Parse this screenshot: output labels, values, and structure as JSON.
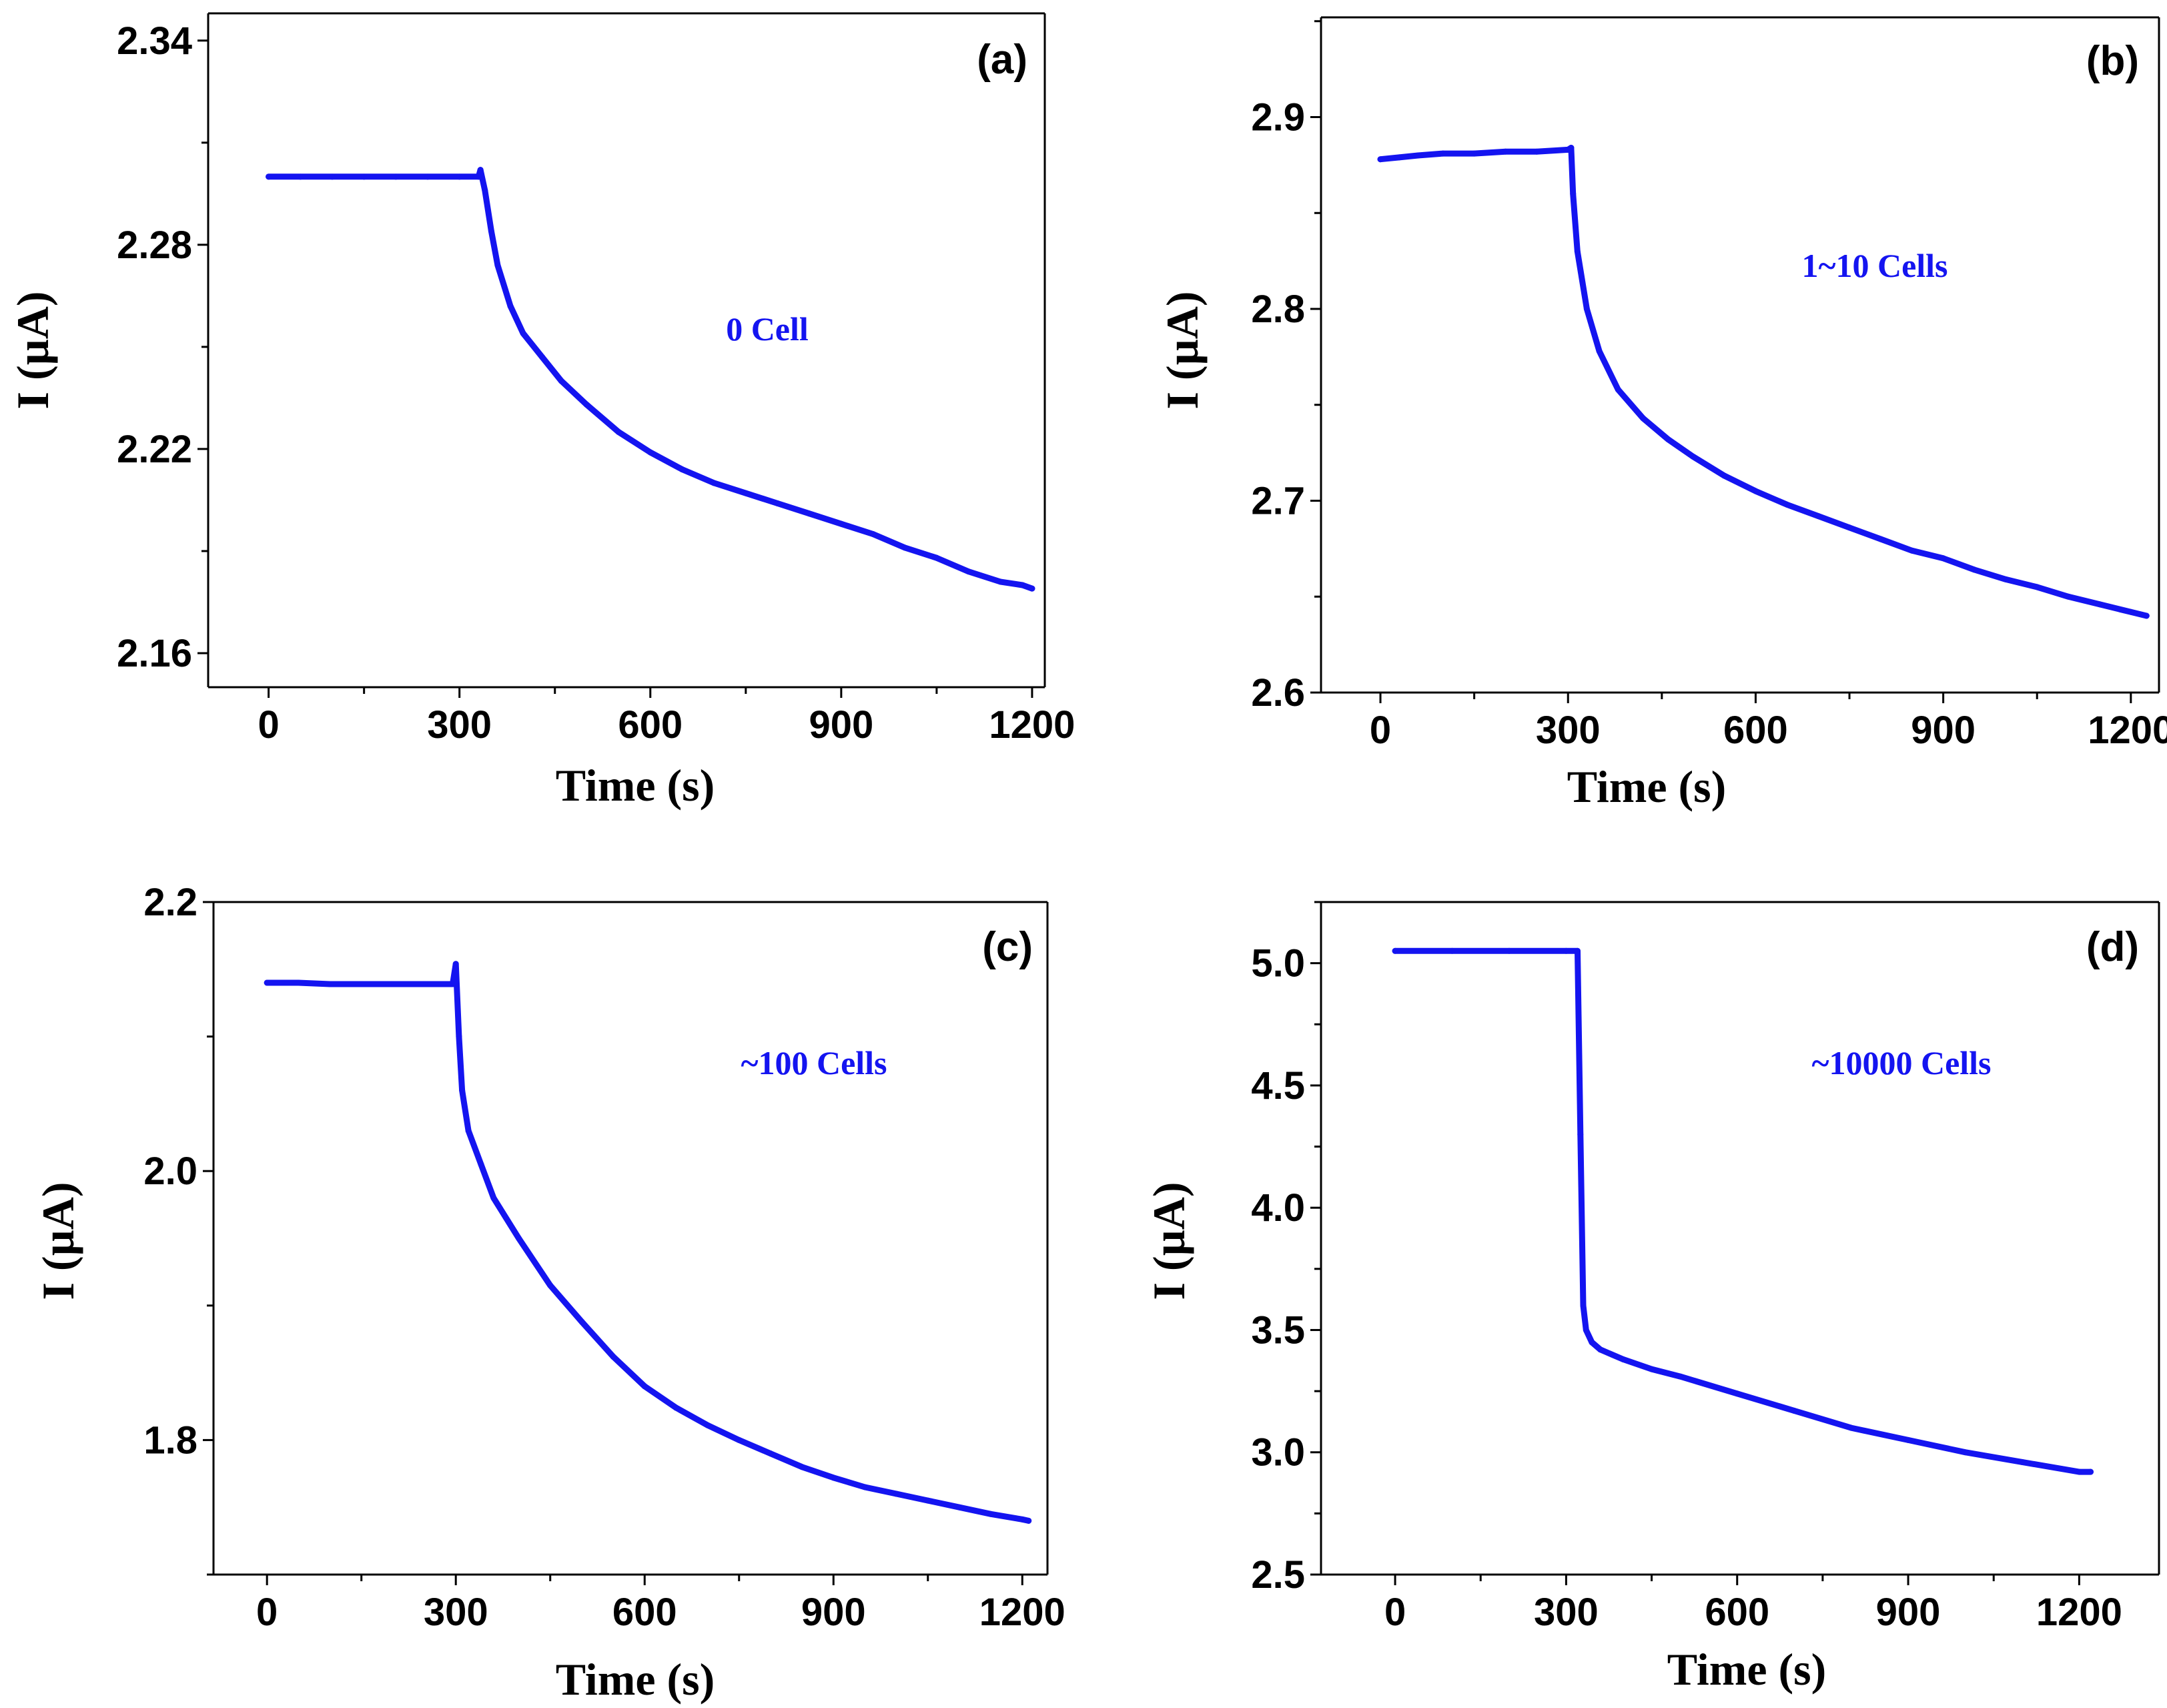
{
  "colors": {
    "series": "#1414f0",
    "axis": "#000000"
  },
  "chart_data": [
    {
      "type": "line",
      "panel_label": "(a)",
      "annotation": "0 Cell",
      "xlabel": "Time (s)",
      "ylabel": "I (µA)",
      "xlim": [
        -95,
        1220
      ],
      "ylim": [
        2.15,
        2.348
      ],
      "xticks": [
        0,
        300,
        600,
        900,
        1200
      ],
      "yticks": [
        2.16,
        2.22,
        2.28,
        2.34
      ],
      "ytick_labels": [
        "2.16",
        "2.22",
        "2.28",
        "2.34"
      ],
      "series": [
        {
          "name": "0 Cell",
          "x": [
            0,
            50,
            100,
            150,
            200,
            250,
            300,
            330,
            333,
            340,
            350,
            360,
            380,
            400,
            430,
            460,
            500,
            550,
            600,
            650,
            700,
            750,
            800,
            850,
            900,
            950,
            1000,
            1050,
            1100,
            1150,
            1185,
            1200
          ],
          "y": [
            2.3,
            2.3,
            2.3,
            2.3,
            2.3,
            2.3,
            2.3,
            2.3,
            2.302,
            2.296,
            2.284,
            2.274,
            2.262,
            2.254,
            2.247,
            2.24,
            2.233,
            2.225,
            2.219,
            2.214,
            2.21,
            2.207,
            2.204,
            2.201,
            2.198,
            2.195,
            2.191,
            2.188,
            2.184,
            2.181,
            2.18,
            2.179
          ]
        }
      ]
    },
    {
      "type": "line",
      "panel_label": "(b)",
      "annotation": "1~10 Cells",
      "xlabel": "Time (s)",
      "ylabel": "I (µA)",
      "xlim": [
        -95,
        1245
      ],
      "ylim": [
        2.6,
        2.952
      ],
      "xticks": [
        0,
        300,
        600,
        900,
        1200
      ],
      "yticks": [
        2.6,
        2.7,
        2.8,
        2.9
      ],
      "ytick_labels": [
        "2.6",
        "2.7",
        "2.8",
        "2.9"
      ],
      "series": [
        {
          "name": "1~10 Cells",
          "x": [
            0,
            30,
            60,
            100,
            150,
            200,
            250,
            300,
            305,
            308,
            315,
            330,
            350,
            380,
            420,
            460,
            500,
            550,
            600,
            650,
            700,
            750,
            800,
            850,
            900,
            950,
            1000,
            1050,
            1100,
            1150,
            1200,
            1225
          ],
          "y": [
            2.878,
            2.879,
            2.88,
            2.881,
            2.881,
            2.882,
            2.882,
            2.883,
            2.884,
            2.86,
            2.83,
            2.8,
            2.778,
            2.758,
            2.743,
            2.732,
            2.723,
            2.713,
            2.705,
            2.698,
            2.692,
            2.686,
            2.68,
            2.674,
            2.67,
            2.664,
            2.659,
            2.655,
            2.65,
            2.646,
            2.642,
            2.64
          ]
        }
      ]
    },
    {
      "type": "line",
      "panel_label": "(c)",
      "annotation": "~100 Cells",
      "xlabel": "Time (s)",
      "ylabel": "I (µA)",
      "xlim": [
        -85,
        1240
      ],
      "ylim": [
        1.7,
        2.2
      ],
      "xticks": [
        0,
        300,
        600,
        900,
        1200
      ],
      "yticks": [
        1.8,
        2.0,
        2.2
      ],
      "ytick_labels": [
        "1.8",
        "2.0",
        "2.2"
      ],
      "series": [
        {
          "name": "~100 Cells",
          "x": [
            0,
            50,
            100,
            150,
            200,
            250,
            295,
            300,
            305,
            310,
            320,
            340,
            360,
            400,
            450,
            500,
            550,
            600,
            650,
            700,
            750,
            800,
            850,
            900,
            950,
            1000,
            1050,
            1100,
            1150,
            1200,
            1210
          ],
          "y": [
            2.14,
            2.14,
            2.139,
            2.139,
            2.139,
            2.139,
            2.139,
            2.154,
            2.1,
            2.06,
            2.03,
            2.005,
            1.98,
            1.95,
            1.915,
            1.888,
            1.862,
            1.84,
            1.824,
            1.811,
            1.8,
            1.79,
            1.78,
            1.772,
            1.765,
            1.76,
            1.755,
            1.75,
            1.745,
            1.741,
            1.74
          ]
        }
      ]
    },
    {
      "type": "line",
      "panel_label": "(d)",
      "annotation": "~10000 Cells",
      "xlabel": "Time (s)",
      "ylabel": "I (µA)",
      "xlim": [
        -130,
        1340
      ],
      "ylim": [
        2.5,
        5.25
      ],
      "xticks": [
        0,
        300,
        600,
        900,
        1200
      ],
      "yticks": [
        2.5,
        3.0,
        3.5,
        4.0,
        4.5,
        5.0
      ],
      "ytick_labels": [
        "2.5",
        "3.0",
        "3.5",
        "4.0",
        "4.5",
        "5.0"
      ],
      "series": [
        {
          "name": "~10000 Cells",
          "x": [
            0,
            100,
            200,
            300,
            320,
            325,
            330,
            335,
            345,
            360,
            400,
            450,
            500,
            600,
            700,
            800,
            900,
            1000,
            1100,
            1200,
            1220
          ],
          "y": [
            5.05,
            5.05,
            5.05,
            5.05,
            5.05,
            4.3,
            3.6,
            3.5,
            3.45,
            3.42,
            3.38,
            3.34,
            3.31,
            3.24,
            3.17,
            3.1,
            3.05,
            3.0,
            2.96,
            2.92,
            2.92
          ]
        }
      ]
    }
  ]
}
